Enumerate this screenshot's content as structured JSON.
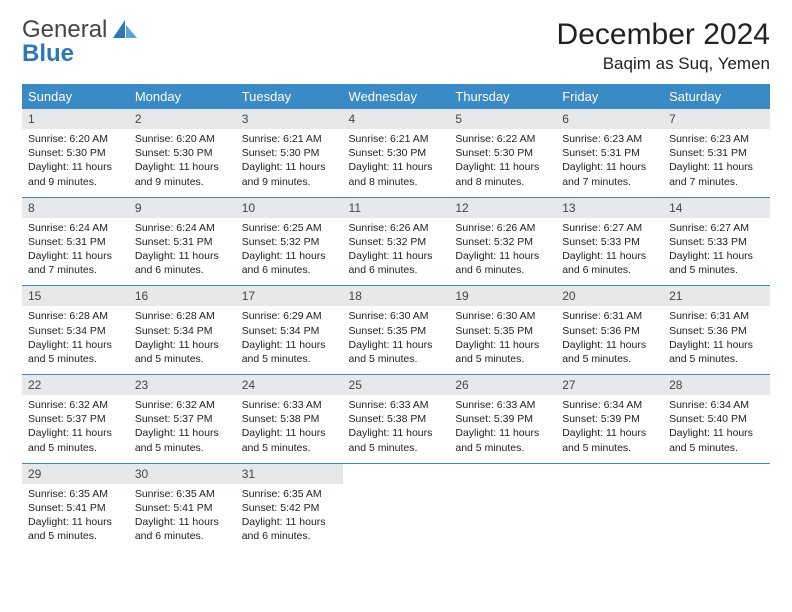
{
  "brand": {
    "word1": "General",
    "word2": "Blue"
  },
  "title": {
    "month": "December 2024",
    "location": "Baqim as Suq, Yemen"
  },
  "colors": {
    "header_bg": "#3a8ac6",
    "daynum_bg": "#e7e8ea",
    "rule": "#3a8ac6",
    "brand_blue": "#2f78b7"
  },
  "weekdays": [
    "Sunday",
    "Monday",
    "Tuesday",
    "Wednesday",
    "Thursday",
    "Friday",
    "Saturday"
  ],
  "days": [
    {
      "n": 1,
      "sr": "6:20 AM",
      "ss": "5:30 PM",
      "dl": "11 hours and 9 minutes."
    },
    {
      "n": 2,
      "sr": "6:20 AM",
      "ss": "5:30 PM",
      "dl": "11 hours and 9 minutes."
    },
    {
      "n": 3,
      "sr": "6:21 AM",
      "ss": "5:30 PM",
      "dl": "11 hours and 9 minutes."
    },
    {
      "n": 4,
      "sr": "6:21 AM",
      "ss": "5:30 PM",
      "dl": "11 hours and 8 minutes."
    },
    {
      "n": 5,
      "sr": "6:22 AM",
      "ss": "5:30 PM",
      "dl": "11 hours and 8 minutes."
    },
    {
      "n": 6,
      "sr": "6:23 AM",
      "ss": "5:31 PM",
      "dl": "11 hours and 7 minutes."
    },
    {
      "n": 7,
      "sr": "6:23 AM",
      "ss": "5:31 PM",
      "dl": "11 hours and 7 minutes."
    },
    {
      "n": 8,
      "sr": "6:24 AM",
      "ss": "5:31 PM",
      "dl": "11 hours and 7 minutes."
    },
    {
      "n": 9,
      "sr": "6:24 AM",
      "ss": "5:31 PM",
      "dl": "11 hours and 6 minutes."
    },
    {
      "n": 10,
      "sr": "6:25 AM",
      "ss": "5:32 PM",
      "dl": "11 hours and 6 minutes."
    },
    {
      "n": 11,
      "sr": "6:26 AM",
      "ss": "5:32 PM",
      "dl": "11 hours and 6 minutes."
    },
    {
      "n": 12,
      "sr": "6:26 AM",
      "ss": "5:32 PM",
      "dl": "11 hours and 6 minutes."
    },
    {
      "n": 13,
      "sr": "6:27 AM",
      "ss": "5:33 PM",
      "dl": "11 hours and 6 minutes."
    },
    {
      "n": 14,
      "sr": "6:27 AM",
      "ss": "5:33 PM",
      "dl": "11 hours and 5 minutes."
    },
    {
      "n": 15,
      "sr": "6:28 AM",
      "ss": "5:34 PM",
      "dl": "11 hours and 5 minutes."
    },
    {
      "n": 16,
      "sr": "6:28 AM",
      "ss": "5:34 PM",
      "dl": "11 hours and 5 minutes."
    },
    {
      "n": 17,
      "sr": "6:29 AM",
      "ss": "5:34 PM",
      "dl": "11 hours and 5 minutes."
    },
    {
      "n": 18,
      "sr": "6:30 AM",
      "ss": "5:35 PM",
      "dl": "11 hours and 5 minutes."
    },
    {
      "n": 19,
      "sr": "6:30 AM",
      "ss": "5:35 PM",
      "dl": "11 hours and 5 minutes."
    },
    {
      "n": 20,
      "sr": "6:31 AM",
      "ss": "5:36 PM",
      "dl": "11 hours and 5 minutes."
    },
    {
      "n": 21,
      "sr": "6:31 AM",
      "ss": "5:36 PM",
      "dl": "11 hours and 5 minutes."
    },
    {
      "n": 22,
      "sr": "6:32 AM",
      "ss": "5:37 PM",
      "dl": "11 hours and 5 minutes."
    },
    {
      "n": 23,
      "sr": "6:32 AM",
      "ss": "5:37 PM",
      "dl": "11 hours and 5 minutes."
    },
    {
      "n": 24,
      "sr": "6:33 AM",
      "ss": "5:38 PM",
      "dl": "11 hours and 5 minutes."
    },
    {
      "n": 25,
      "sr": "6:33 AM",
      "ss": "5:38 PM",
      "dl": "11 hours and 5 minutes."
    },
    {
      "n": 26,
      "sr": "6:33 AM",
      "ss": "5:39 PM",
      "dl": "11 hours and 5 minutes."
    },
    {
      "n": 27,
      "sr": "6:34 AM",
      "ss": "5:39 PM",
      "dl": "11 hours and 5 minutes."
    },
    {
      "n": 28,
      "sr": "6:34 AM",
      "ss": "5:40 PM",
      "dl": "11 hours and 5 minutes."
    },
    {
      "n": 29,
      "sr": "6:35 AM",
      "ss": "5:41 PM",
      "dl": "11 hours and 5 minutes."
    },
    {
      "n": 30,
      "sr": "6:35 AM",
      "ss": "5:41 PM",
      "dl": "11 hours and 6 minutes."
    },
    {
      "n": 31,
      "sr": "6:35 AM",
      "ss": "5:42 PM",
      "dl": "11 hours and 6 minutes."
    }
  ],
  "labels": {
    "sunrise": "Sunrise:",
    "sunset": "Sunset:",
    "daylight": "Daylight:"
  },
  "layout": {
    "first_weekday_index": 0,
    "total_cells": 35
  }
}
